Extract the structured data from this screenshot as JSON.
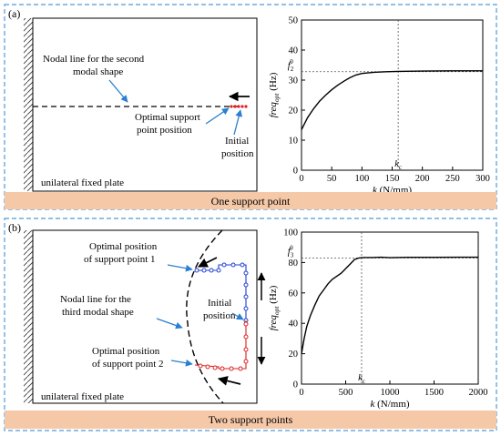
{
  "panel_a": {
    "label": "(a)",
    "caption": "One support point",
    "plate_text": "unilateral fixed plate",
    "nodal_label_l1": "Nodal line for the second",
    "nodal_label_l2": "modal shape",
    "optimal_l1": "Optimal support",
    "optimal_l2": "point position",
    "initial_l1": "Initial",
    "initial_l2": "position"
  },
  "panel_b": {
    "label": "(b)",
    "caption": "Two support points",
    "plate_text": "unilateral fixed plate",
    "opt1_l1": "Optimal position",
    "opt1_l2": "of support point 1",
    "nodal_l1": "Nodal line for the",
    "nodal_l2": "third modal shape",
    "initial_l1": "Initial",
    "initial_l2": "position",
    "opt2_l1": "Optimal position",
    "opt2_l2": "of support point 2"
  },
  "colors": {
    "panel_border": "#4f9ad6",
    "caption_fill": "#f5c8a8",
    "red_path": "#e02020",
    "blue_path": "#2040d0"
  },
  "chart_data": [
    {
      "type": "line",
      "xlabel_k": "k",
      "xlabel_unit": "(N/mm)",
      "ylabel_main": "freq",
      "ylabel_sub": "opt",
      "ylabel_unit": "(Hz)",
      "xlim": [
        0,
        300
      ],
      "ylim": [
        0,
        50
      ],
      "xticks": [
        0,
        50,
        100,
        150,
        200,
        250,
        300
      ],
      "yticks": [
        0,
        10,
        20,
        30,
        40,
        50
      ],
      "ref_label_f": "f",
      "ref_label_sub": "2",
      "ref_label_sup": "0",
      "ref_y": 32.8,
      "kc_label": "k",
      "kc_sub": "c",
      "kc_x": 160,
      "x": [
        0,
        10,
        20,
        30,
        40,
        50,
        60,
        70,
        80,
        90,
        100,
        120,
        140,
        160,
        200,
        250,
        300
      ],
      "y": [
        13.5,
        17.5,
        20.5,
        23.0,
        25.0,
        26.8,
        28.3,
        29.6,
        30.8,
        31.7,
        32.2,
        32.6,
        32.8,
        32.9,
        33.0,
        33.1,
        33.1
      ]
    },
    {
      "type": "line",
      "xlabel_k": "k",
      "xlabel_unit": "(N/mm)",
      "ylabel_main": "freq",
      "ylabel_sub": "opt",
      "ylabel_unit": "(Hz)",
      "xlim": [
        0,
        2000
      ],
      "ylim": [
        0,
        100
      ],
      "xticks": [
        0,
        500,
        1000,
        1500,
        2000
      ],
      "yticks": [
        0,
        20,
        40,
        60,
        80,
        100
      ],
      "ref_label_f": "f",
      "ref_label_sub": "3",
      "ref_label_sup": "0",
      "ref_y": 83,
      "kc_label": "k",
      "kc_sub": "c",
      "kc_x": 680,
      "x": [
        0,
        30,
        60,
        100,
        150,
        200,
        250,
        300,
        350,
        400,
        450,
        500,
        550,
        600,
        650,
        700,
        800,
        900,
        1000,
        1200,
        1500,
        1800,
        2000
      ],
      "y": [
        20,
        30,
        38,
        45,
        52,
        58,
        62,
        66,
        69,
        71,
        73,
        76,
        79,
        82,
        83,
        83.3,
        83.3,
        83.5,
        83.2,
        83.4,
        83.4,
        83.5,
        83.5
      ]
    }
  ]
}
